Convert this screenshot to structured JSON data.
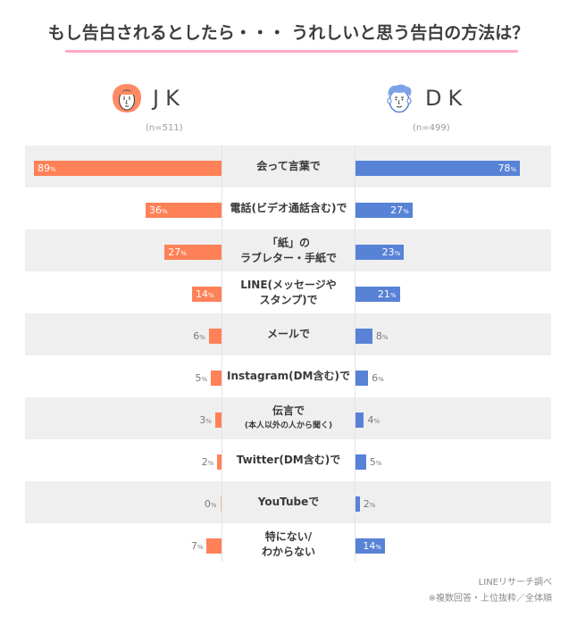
{
  "title": "もし告白されるとしたら・・・ うれしいと思う告白の方法は？",
  "groups": {
    "jk": {
      "name": "JK",
      "n": "(n=511)",
      "color": "#ff8157"
    },
    "dk": {
      "name": "DK",
      "n": "(n=499)",
      "color": "#5882d6"
    }
  },
  "rows": [
    {
      "label": [
        "会って言葉で"
      ],
      "jk": "89",
      "dk": "78"
    },
    {
      "label": [
        "電話(ビデオ通話含む)で"
      ],
      "jk": "36",
      "dk": "27"
    },
    {
      "label": [
        "「紙」の",
        "ラブレター・手紙で"
      ],
      "jk": "27",
      "dk": "23"
    },
    {
      "label": [
        "LINE(メッセージや",
        "スタンプ)で"
      ],
      "jk": "14",
      "dk": "21"
    },
    {
      "label": [
        "メールで"
      ],
      "jk": "6",
      "dk": "8"
    },
    {
      "label": [
        "Instagram(DM含む)で"
      ],
      "jk": "5",
      "dk": "6"
    },
    {
      "label": [
        "伝言で",
        "(本人以外の人から聞く)"
      ],
      "jk": "3",
      "dk": "4"
    },
    {
      "label": [
        "Twitter(DM含む)で"
      ],
      "jk": "2",
      "dk": "5"
    },
    {
      "label": [
        "YouTubeで"
      ],
      "jk": "0",
      "dk": "2"
    },
    {
      "label": [
        "特にない/",
        "わからない"
      ],
      "jk": "7",
      "dk": "14"
    }
  ],
  "pct_unit": "%",
  "footer": {
    "source": "LINEリサーチ調べ",
    "note": "※複数回答・上位抜粋／全体順"
  },
  "chart_data": {
    "type": "bar",
    "orientation": "horizontal-butterfly",
    "title": "もし告白されるとしたら・・・ うれしいと思う告白の方法は？",
    "categories": [
      "会って言葉で",
      "電話(ビデオ通話含む)で",
      "「紙」のラブレター・手紙で",
      "LINE(メッセージやスタンプ)で",
      "メールで",
      "Instagram(DM含む)で",
      "伝言で(本人以外の人から聞く)",
      "Twitter(DM含む)で",
      "YouTubeで",
      "特にない/わからない"
    ],
    "series": [
      {
        "name": "JK (n=511)",
        "color": "#ff8157",
        "values": [
          89,
          36,
          27,
          14,
          6,
          5,
          3,
          2,
          0,
          7
        ]
      },
      {
        "name": "DK (n=499)",
        "color": "#5882d6",
        "values": [
          78,
          27,
          23,
          21,
          8,
          6,
          4,
          5,
          2,
          14
        ]
      }
    ],
    "unit": "%",
    "xlabel": "",
    "ylabel": "",
    "xlim": [
      0,
      100
    ],
    "grid": false,
    "legend_position": "top",
    "annotations": [
      "LINEリサーチ調べ",
      "※複数回答・上位抜粋／全体順"
    ]
  }
}
